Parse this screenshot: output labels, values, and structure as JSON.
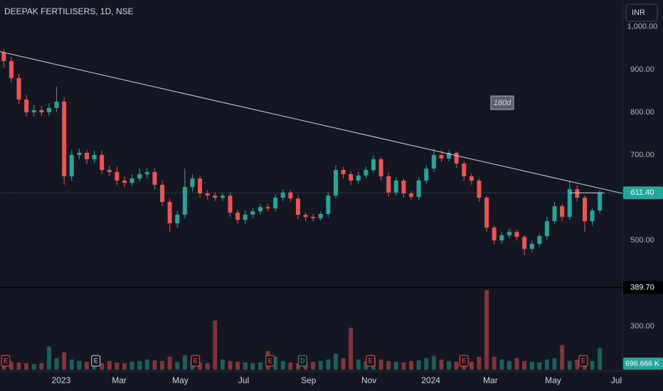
{
  "chart_data": {
    "type": "candlestick",
    "title": "DEEPAK FERTILISERS, 1D, NSE",
    "currency": "INR",
    "colors": {
      "up": "#26a69a",
      "down": "#ef5350"
    },
    "xlim": [
      -0.5,
      82
    ],
    "xticks": [
      {
        "value": 7.6,
        "label": "2023"
      },
      {
        "value": 15.3,
        "label": "Mar"
      },
      {
        "value": 23.4,
        "label": "May"
      },
      {
        "value": 31.8,
        "label": "Jul"
      },
      {
        "value": 40.4,
        "label": "Sep"
      },
      {
        "value": 48.4,
        "label": "Nov"
      },
      {
        "value": 56.6,
        "label": "2024"
      },
      {
        "value": 64.5,
        "label": "Mar"
      },
      {
        "value": 72.8,
        "label": "May"
      },
      {
        "value": 81.2,
        "label": "Jul"
      }
    ],
    "ylim": [
      392,
      1063
    ],
    "yticks": [
      {
        "value": 500,
        "label": "500.00"
      },
      {
        "value": 700,
        "label": "700.00"
      },
      {
        "value": 800,
        "label": "800.00"
      },
      {
        "value": 900,
        "label": "900.00"
      },
      {
        "value": 1000,
        "label": "1,000.00"
      }
    ],
    "open": [
      940,
      920,
      880,
      830,
      800,
      805,
      800,
      810,
      825,
      650,
      700,
      705,
      690,
      700,
      665,
      660,
      640,
      635,
      645,
      655,
      660,
      630,
      590,
      540,
      560,
      625,
      645,
      610,
      605,
      600,
      605,
      565,
      548,
      560,
      568,
      578,
      575,
      600,
      612,
      598,
      560,
      555,
      552,
      562,
      605,
      665,
      655,
      640,
      652,
      665,
      690,
      650,
      612,
      640,
      610,
      602,
      640,
      668,
      700,
      692,
      705,
      680,
      650,
      640,
      600,
      530,
      500,
      512,
      520,
      508,
      480,
      492,
      510,
      545,
      580,
      555,
      620,
      600,
      545,
      570
    ],
    "high": [
      948,
      930,
      890,
      840,
      818,
      815,
      820,
      860,
      835,
      712,
      715,
      712,
      710,
      710,
      675,
      672,
      650,
      655,
      668,
      670,
      668,
      640,
      598,
      570,
      668,
      655,
      652,
      618,
      612,
      612,
      612,
      572,
      570,
      575,
      585,
      585,
      608,
      620,
      618,
      605,
      566,
      562,
      568,
      612,
      676,
      672,
      662,
      660,
      672,
      700,
      695,
      658,
      648,
      645,
      615,
      648,
      676,
      715,
      710,
      712,
      708,
      685,
      656,
      645,
      605,
      535,
      520,
      528,
      525,
      512,
      500,
      515,
      555,
      590,
      585,
      640,
      630,
      605,
      575,
      618
    ],
    "low": [
      905,
      870,
      820,
      790,
      790,
      792,
      792,
      800,
      630,
      640,
      690,
      680,
      682,
      655,
      650,
      630,
      625,
      628,
      638,
      645,
      620,
      580,
      520,
      530,
      552,
      615,
      600,
      595,
      592,
      592,
      555,
      540,
      540,
      552,
      560,
      568,
      568,
      592,
      590,
      550,
      545,
      545,
      546,
      555,
      598,
      645,
      630,
      632,
      645,
      658,
      640,
      602,
      605,
      600,
      595,
      595,
      632,
      660,
      684,
      685,
      670,
      640,
      630,
      590,
      520,
      490,
      492,
      505,
      500,
      465,
      472,
      485,
      502,
      538,
      545,
      548,
      592,
      520,
      535,
      562
    ],
    "close": [
      920,
      880,
      830,
      800,
      805,
      800,
      810,
      825,
      650,
      700,
      705,
      690,
      700,
      665,
      660,
      640,
      635,
      645,
      655,
      660,
      630,
      590,
      540,
      560,
      625,
      645,
      610,
      605,
      600,
      605,
      565,
      548,
      560,
      568,
      578,
      575,
      600,
      612,
      598,
      560,
      555,
      552,
      562,
      605,
      665,
      655,
      640,
      652,
      665,
      690,
      650,
      612,
      640,
      610,
      602,
      640,
      668,
      700,
      692,
      705,
      680,
      650,
      640,
      600,
      530,
      500,
      512,
      520,
      508,
      480,
      492,
      510,
      545,
      580,
      555,
      620,
      600,
      545,
      570,
      611.4
    ],
    "last_price": {
      "value": 611.4,
      "label": "611.40"
    },
    "crosshair": {
      "value": 389.7,
      "label": "389.70"
    },
    "trendline": {
      "x": [
        -0.5,
        82
      ],
      "y": [
        942,
        610
      ]
    },
    "hline": {
      "x": [
        75,
        79.6
      ],
      "y": 611.4
    },
    "annotation": "180d",
    "volume": [
      60,
      55,
      50,
      45,
      40,
      45,
      160,
      80,
      120,
      70,
      60,
      55,
      50,
      45,
      60,
      50,
      45,
      55,
      60,
      70,
      65,
      60,
      90,
      55,
      100,
      60,
      50,
      45,
      340,
      70,
      60,
      55,
      50,
      45,
      50,
      130,
      90,
      60,
      50,
      45,
      50,
      55,
      60,
      70,
      110,
      80,
      290,
      70,
      60,
      90,
      70,
      60,
      55,
      50,
      60,
      65,
      80,
      95,
      70,
      60,
      55,
      50,
      55,
      90,
      550,
      90,
      70,
      60,
      80,
      60,
      55,
      50,
      70,
      80,
      170,
      60,
      70,
      55,
      60,
      150
    ],
    "volume_ylim": [
      0,
      565
    ],
    "volume_yticks": [
      {
        "value": 300,
        "label": "300.00"
      }
    ],
    "last_volume_label": "696.666 K",
    "events": [
      {
        "label": "E",
        "x": 0.25
      },
      {
        "label": "E",
        "x": 12.2
      },
      {
        "label": "E",
        "x": 25.4
      },
      {
        "label": "E",
        "x": 35.3
      },
      {
        "label": "D",
        "x": 39.6
      },
      {
        "label": "E",
        "x": 48.6
      },
      {
        "label": "E",
        "x": 61
      },
      {
        "label": "E",
        "x": 76.8
      }
    ]
  }
}
